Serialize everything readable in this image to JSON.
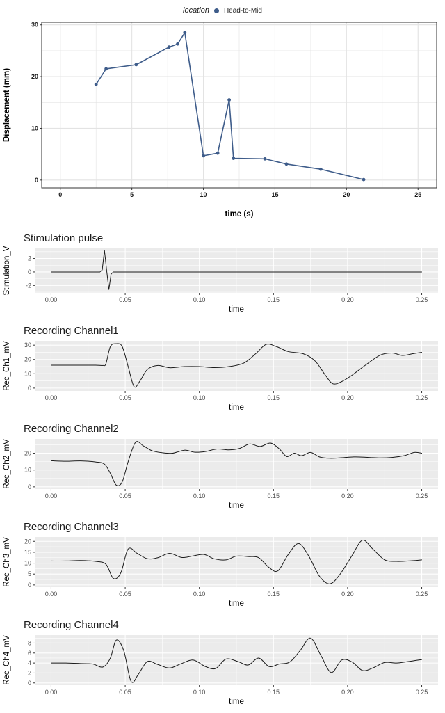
{
  "figure": {
    "background": "#ffffff"
  },
  "chart_data": [
    {
      "id": "displacement-vs-time",
      "type": "line",
      "legend_title": "location",
      "legend_entries": [
        "Head-to-Mid"
      ],
      "legend_position": "top-center",
      "xlabel": "time (s)",
      "ylabel": "Displacement (mm)",
      "x": [
        2.5,
        3.2,
        5.3,
        7.6,
        8.2,
        8.7,
        10.0,
        11.0,
        11.8,
        12.1,
        14.3,
        15.8,
        18.2,
        21.2
      ],
      "y": [
        18.5,
        21.5,
        22.3,
        25.7,
        26.3,
        28.5,
        4.7,
        5.2,
        15.5,
        4.2,
        4.1,
        3.1,
        2.1,
        0.1
      ],
      "xlim": [
        -1.3,
        26.3
      ],
      "ylim": [
        -1.5,
        30.5
      ],
      "xticks": [
        0,
        5,
        10,
        15,
        20,
        25
      ],
      "xtick_labels": [
        "0",
        "5",
        "10",
        "15",
        "20",
        "25"
      ],
      "yticks": [
        0,
        10,
        20,
        30
      ],
      "ytick_labels": [
        "0",
        "10",
        "20",
        "30"
      ],
      "color": "#3E5C8A",
      "line_width": 1.6,
      "markers": true,
      "smooth": false,
      "style": {
        "panel_bg": "#FFFFFF",
        "grid": "#E3E3E3",
        "border": "#333333",
        "tick_bold": true,
        "tick_color": "#1a1a1a",
        "axis_bold": true
      },
      "margins": {
        "l": 60,
        "r": 12,
        "t": 8,
        "b": 46
      }
    },
    {
      "id": "stimulation-pulse",
      "type": "line",
      "title": "Stimulation pulse",
      "xlabel": "time",
      "ylabel": "Stimulation_V",
      "x": [
        0,
        0.033,
        0.0345,
        0.036,
        0.0375,
        0.039,
        0.0405,
        0.042,
        0.06,
        0.1,
        0.15,
        0.2,
        0.25
      ],
      "y": [
        0,
        0,
        0.3,
        3.2,
        0.2,
        -2.6,
        -0.3,
        0,
        0,
        0,
        0,
        0,
        0
      ],
      "xlim": [
        -0.011,
        0.261
      ],
      "ylim": [
        -3.1,
        3.5
      ],
      "xticks": [
        0,
        0.05,
        0.1,
        0.15,
        0.2,
        0.25
      ],
      "xtick_labels": [
        "0.00",
        "0.05",
        "0.10",
        "0.15",
        "0.20",
        "0.25"
      ],
      "yticks": [
        -2,
        0,
        2
      ],
      "ytick_labels": [
        "-2",
        "0",
        "2"
      ],
      "color": "#1A1A1A",
      "line_width": 1,
      "markers": false,
      "smooth": false,
      "style": {
        "panel_bg": "#EBEBEB",
        "grid": "#FFFFFF",
        "border": null,
        "tick_bold": false,
        "tick_color": "#4D4D4D",
        "axis_bold": false
      },
      "margins": {
        "l": 50,
        "r": 10,
        "t": 4,
        "b": 32
      }
    },
    {
      "id": "recording-channel1",
      "type": "line",
      "title": "Recording Channel1",
      "xlabel": "time",
      "ylabel": "Rec_Ch1_mV",
      "x": [
        0,
        0.01,
        0.02,
        0.03,
        0.035,
        0.037,
        0.04,
        0.044,
        0.048,
        0.052,
        0.056,
        0.06,
        0.065,
        0.072,
        0.08,
        0.09,
        0.1,
        0.11,
        0.12,
        0.13,
        0.138,
        0.145,
        0.152,
        0.16,
        0.17,
        0.178,
        0.185,
        0.19,
        0.196,
        0.203,
        0.212,
        0.222,
        0.23,
        0.237,
        0.244,
        0.25
      ],
      "y": [
        16,
        16,
        16,
        16,
        15.8,
        17,
        29,
        31,
        29,
        15,
        1,
        5,
        13,
        15.8,
        14.2,
        15,
        15,
        14.3,
        15,
        17.5,
        24,
        30.5,
        29,
        25.5,
        24,
        19,
        9,
        3,
        4.5,
        9,
        16,
        23,
        24.5,
        22.8,
        24,
        25
      ],
      "xlim": [
        -0.011,
        0.261
      ],
      "ylim": [
        -2,
        33
      ],
      "xticks": [
        0,
        0.05,
        0.1,
        0.15,
        0.2,
        0.25
      ],
      "xtick_labels": [
        "0.00",
        "0.05",
        "0.10",
        "0.15",
        "0.20",
        "0.25"
      ],
      "yticks": [
        0,
        10,
        20,
        30
      ],
      "ytick_labels": [
        "0",
        "10",
        "20",
        "30"
      ],
      "color": "#1A1A1A",
      "line_width": 1,
      "markers": false,
      "smooth": true,
      "style": {
        "panel_bg": "#EBEBEB",
        "grid": "#FFFFFF",
        "border": null,
        "tick_bold": false,
        "tick_color": "#4D4D4D",
        "axis_bold": false
      },
      "margins": {
        "l": 50,
        "r": 10,
        "t": 4,
        "b": 32
      }
    },
    {
      "id": "recording-channel2",
      "type": "line",
      "title": "Recording Channel2",
      "xlabel": "time",
      "ylabel": "Rec_Ch2_mV",
      "x": [
        0,
        0.01,
        0.02,
        0.03,
        0.036,
        0.04,
        0.044,
        0.048,
        0.052,
        0.057,
        0.062,
        0.068,
        0.075,
        0.082,
        0.09,
        0.097,
        0.104,
        0.112,
        0.12,
        0.127,
        0.134,
        0.141,
        0.148,
        0.154,
        0.159,
        0.164,
        0.169,
        0.175,
        0.181,
        0.188,
        0.196,
        0.205,
        0.214,
        0.222,
        0.23,
        0.238,
        0.245,
        0.25
      ],
      "y": [
        15.5,
        15.2,
        15.4,
        14.8,
        13.5,
        8,
        1,
        3,
        15,
        26.5,
        24.5,
        21.5,
        20.3,
        20,
        21.8,
        20.6,
        21,
        22.5,
        22,
        22.8,
        25.5,
        24,
        26,
        22.5,
        18,
        20,
        18.5,
        20.5,
        17.8,
        17,
        17.3,
        17.8,
        17.5,
        17.2,
        17.5,
        18.5,
        20.5,
        20
      ],
      "xlim": [
        -0.011,
        0.261
      ],
      "ylim": [
        -1.3,
        28.5
      ],
      "xticks": [
        0,
        0.05,
        0.1,
        0.15,
        0.2,
        0.25
      ],
      "xtick_labels": [
        "0.00",
        "0.05",
        "0.10",
        "0.15",
        "0.20",
        "0.25"
      ],
      "yticks": [
        0,
        10,
        20
      ],
      "ytick_labels": [
        "0",
        "10",
        "20"
      ],
      "color": "#1A1A1A",
      "line_width": 1,
      "markers": false,
      "smooth": true,
      "style": {
        "panel_bg": "#EBEBEB",
        "grid": "#FFFFFF",
        "border": null,
        "tick_bold": false,
        "tick_color": "#4D4D4D",
        "axis_bold": false
      },
      "margins": {
        "l": 50,
        "r": 10,
        "t": 4,
        "b": 32
      }
    },
    {
      "id": "recording-channel3",
      "type": "line",
      "title": "Recording Channel3",
      "xlabel": "time",
      "ylabel": "Rec_Ch3_mV",
      "x": [
        0,
        0.01,
        0.02,
        0.03,
        0.037,
        0.042,
        0.047,
        0.052,
        0.058,
        0.065,
        0.072,
        0.08,
        0.088,
        0.095,
        0.103,
        0.11,
        0.118,
        0.125,
        0.133,
        0.14,
        0.147,
        0.153,
        0.16,
        0.167,
        0.174,
        0.181,
        0.188,
        0.195,
        0.203,
        0.21,
        0.217,
        0.225,
        0.233,
        0.241,
        0.25
      ],
      "y": [
        11,
        11,
        11.2,
        10.8,
        9.5,
        3,
        5.5,
        16.5,
        14.5,
        12,
        12.5,
        14.5,
        12.6,
        13.2,
        14,
        12,
        11.5,
        13.2,
        13,
        12.5,
        8,
        6.5,
        14,
        19,
        13,
        4,
        0.5,
        5,
        13.5,
        20.5,
        16.5,
        11.5,
        10.8,
        11,
        11.5
      ],
      "xlim": [
        -0.011,
        0.261
      ],
      "ylim": [
        -1,
        22
      ],
      "xticks": [
        0,
        0.05,
        0.1,
        0.15,
        0.2,
        0.25
      ],
      "xtick_labels": [
        "0.00",
        "0.05",
        "0.10",
        "0.15",
        "0.20",
        "0.25"
      ],
      "yticks": [
        0,
        5,
        10,
        15,
        20
      ],
      "ytick_labels": [
        "0",
        "5",
        "10",
        "15",
        "20"
      ],
      "color": "#1A1A1A",
      "line_width": 1,
      "markers": false,
      "smooth": true,
      "style": {
        "panel_bg": "#EBEBEB",
        "grid": "#FFFFFF",
        "border": null,
        "tick_bold": false,
        "tick_color": "#4D4D4D",
        "axis_bold": false
      },
      "margins": {
        "l": 50,
        "r": 10,
        "t": 4,
        "b": 32
      }
    },
    {
      "id": "recording-channel4",
      "type": "line",
      "title": "Recording Channel4",
      "xlabel": "time",
      "ylabel": "Rec_Ch4_mV",
      "x": [
        0,
        0.01,
        0.02,
        0.028,
        0.035,
        0.04,
        0.044,
        0.049,
        0.054,
        0.059,
        0.065,
        0.072,
        0.08,
        0.088,
        0.096,
        0.104,
        0.111,
        0.118,
        0.126,
        0.133,
        0.14,
        0.147,
        0.154,
        0.161,
        0.168,
        0.175,
        0.182,
        0.189,
        0.196,
        0.203,
        0.21,
        0.217,
        0.225,
        0.233,
        0.241,
        0.25
      ],
      "y": [
        4,
        4,
        3.9,
        3.8,
        3.2,
        5,
        8.6,
        6.5,
        0.3,
        1.8,
        4.3,
        3.7,
        3,
        3.9,
        4.6,
        3.3,
        2.9,
        4.8,
        4.3,
        3.6,
        5,
        3.3,
        3.8,
        4.2,
        6.5,
        9,
        5.5,
        2.1,
        4.6,
        4.2,
        2.5,
        3,
        4.1,
        4,
        4.3,
        4.7
      ],
      "xlim": [
        -0.011,
        0.261
      ],
      "ylim": [
        -0.45,
        9.6
      ],
      "xticks": [
        0,
        0.05,
        0.1,
        0.15,
        0.2,
        0.25
      ],
      "xtick_labels": [
        "0.00",
        "0.05",
        "0.10",
        "0.15",
        "0.20",
        "0.25"
      ],
      "yticks": [
        0,
        2,
        4,
        6,
        8
      ],
      "ytick_labels": [
        "0",
        "2",
        "4",
        "6",
        "8"
      ],
      "color": "#1A1A1A",
      "line_width": 1,
      "markers": false,
      "smooth": true,
      "style": {
        "panel_bg": "#EBEBEB",
        "grid": "#FFFFFF",
        "border": null,
        "tick_bold": false,
        "tick_color": "#4D4D4D",
        "axis_bold": false
      },
      "margins": {
        "l": 50,
        "r": 10,
        "t": 4,
        "b": 32
      }
    }
  ]
}
